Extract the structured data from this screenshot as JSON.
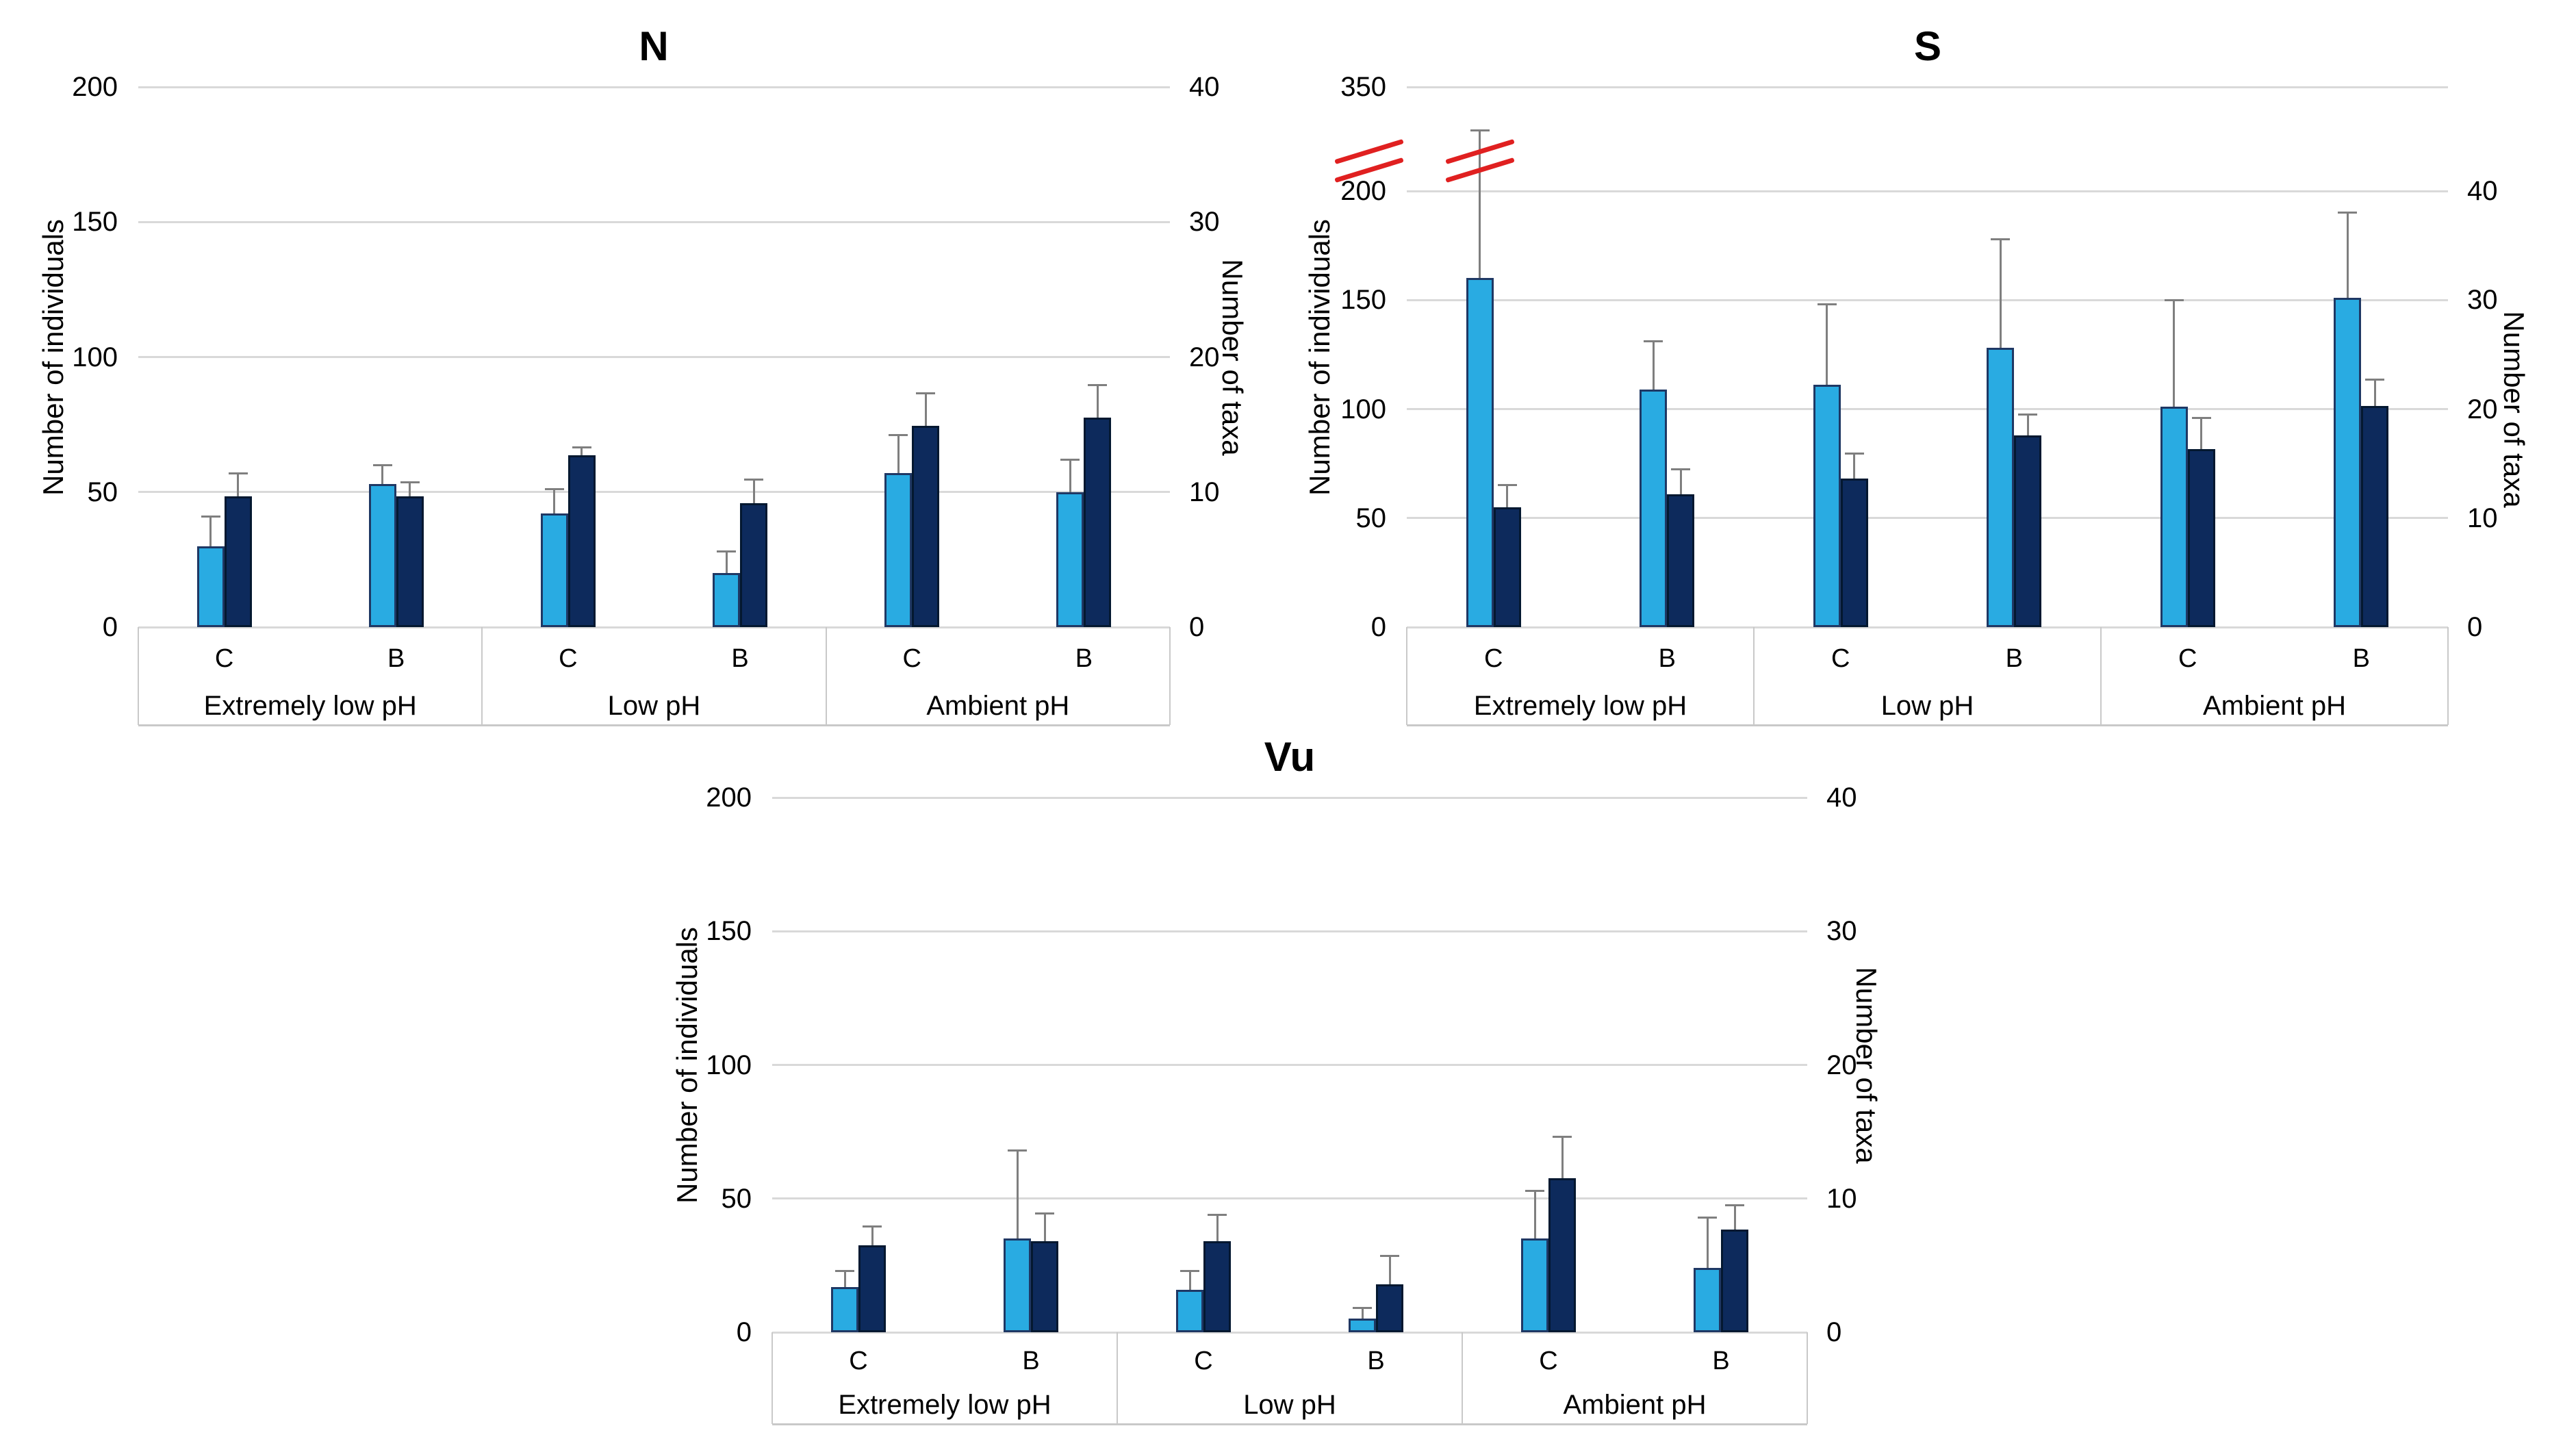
{
  "figure": {
    "background": "#FFFFFF",
    "grid_color": "#D9D9D9",
    "table_border_color": "#C9C9C9",
    "error_bar_color": "#7F7F7F",
    "break_mark_color": "#E02020",
    "individuals_color": "#29ABE2",
    "individuals_edge": "#1F3864",
    "taxa_color": "#0D2A5C",
    "taxa_edge": "#041830"
  },
  "chart_data": [
    {
      "id": "N",
      "type": "bar",
      "title": "N",
      "left_axis": {
        "label": "Number of individuals",
        "max": 200,
        "ticks": [
          0,
          50,
          100,
          150,
          200
        ]
      },
      "right_axis": {
        "label": "Number of taxa",
        "max": 40,
        "ticks": [
          0,
          10,
          20,
          30,
          40
        ]
      },
      "break": null,
      "groups": [
        "Extremely low pH",
        "Low pH",
        "Ambient pH"
      ],
      "subgroups": [
        "C",
        "B"
      ],
      "grid": true,
      "legend": "none",
      "series": [
        {
          "name": "Number of individuals",
          "axis": "left",
          "values": [
            30,
            53,
            42,
            20,
            57,
            50
          ],
          "err_up": [
            11,
            7,
            9,
            8,
            14,
            12
          ]
        },
        {
          "name": "Number of taxa",
          "axis": "right",
          "values": [
            9.7,
            9.7,
            12.7,
            9.2,
            14.9,
            15.5
          ],
          "err_up": [
            1.7,
            1.0,
            0.6,
            1.7,
            2.4,
            2.4
          ]
        }
      ]
    },
    {
      "id": "S",
      "type": "bar",
      "title": "S",
      "left_axis": {
        "label": "Number of individuals",
        "max": 200,
        "ticks": [
          0,
          50,
          100,
          150,
          200
        ]
      },
      "right_axis": {
        "label": "Number of taxa",
        "max": 40,
        "ticks": [
          0,
          10,
          20,
          30,
          40
        ]
      },
      "break": {
        "tick": 350,
        "value": 350,
        "note": "red double-slash axis break between 200 and 350"
      },
      "groups": [
        "Extremely low pH",
        "Low pH",
        "Ambient pH"
      ],
      "subgroups": [
        "C",
        "B"
      ],
      "grid": true,
      "legend": "none",
      "series": [
        {
          "name": "Number of individuals",
          "axis": "left",
          "values": [
            160,
            109,
            111,
            128,
            101,
            151
          ],
          "err_up": [
            127,
            22,
            37,
            50,
            49,
            39
          ]
        },
        {
          "name": "Number of taxa",
          "axis": "right",
          "values": [
            11,
            12.2,
            13.6,
            17.6,
            16.3,
            20.3
          ],
          "err_up": [
            2.0,
            2.3,
            2.3,
            1.9,
            2.9,
            2.4
          ]
        }
      ]
    },
    {
      "id": "Vu",
      "type": "bar",
      "title": "Vu",
      "left_axis": {
        "label": "Number of individuals",
        "max": 200,
        "ticks": [
          0,
          50,
          100,
          150,
          200
        ]
      },
      "right_axis": {
        "label": "Number of taxa",
        "max": 40,
        "ticks": [
          0,
          10,
          20,
          30,
          40
        ]
      },
      "break": null,
      "groups": [
        "Extremely low pH",
        "Low pH",
        "Ambient pH"
      ],
      "subgroups": [
        "C",
        "B"
      ],
      "grid": true,
      "legend": "none",
      "series": [
        {
          "name": "Number of individuals",
          "axis": "left",
          "values": [
            17,
            35,
            16,
            5,
            35,
            24
          ],
          "err_up": [
            6,
            33,
            7,
            4,
            18,
            19
          ]
        },
        {
          "name": "Number of taxa",
          "axis": "right",
          "values": [
            6.5,
            6.8,
            6.8,
            3.6,
            11.5,
            7.7
          ],
          "err_up": [
            1.4,
            2.1,
            2.0,
            2.1,
            3.1,
            1.8
          ]
        }
      ]
    }
  ]
}
